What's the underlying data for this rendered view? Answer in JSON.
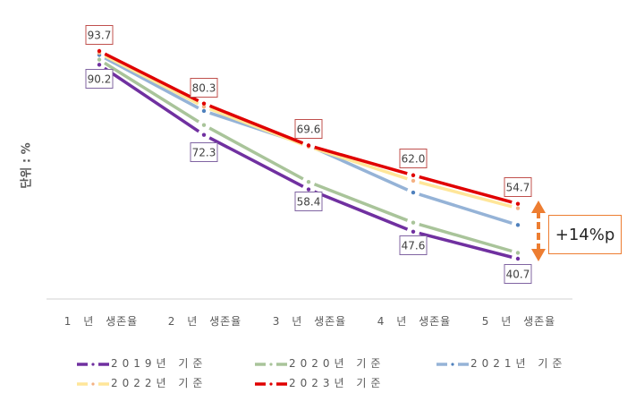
{
  "chart_data": {
    "type": "line",
    "title": "",
    "xlabel": "",
    "ylabel": "단위 : %",
    "categories": [
      "1년 생존율",
      "2년 생존율",
      "3년 생존율",
      "4년 생존율",
      "5년 생존율"
    ],
    "series": [
      {
        "name": "2019년 기준",
        "color": "#7030A0",
        "values": [
          90.2,
          72.3,
          58.4,
          47.6,
          40.7
        ],
        "labels_shown": true
      },
      {
        "name": "2020년 기준",
        "color": "#A9C49A",
        "values": [
          91.5,
          74.8,
          60.3,
          49.9,
          42.2
        ],
        "labels_shown": false
      },
      {
        "name": "2021년 기준",
        "color": "#95B3D7",
        "values": [
          92.7,
          78.4,
          69.6,
          57.6,
          49.3
        ],
        "labels_shown": false
      },
      {
        "name": "2022년 기준",
        "color": "#FFE699",
        "values": [
          93.2,
          79.5,
          69.3,
          60.6,
          53.6
        ],
        "labels_shown": false
      },
      {
        "name": "2023년 기준",
        "color": "#E00000",
        "values": [
          93.7,
          80.3,
          69.6,
          62.0,
          54.7
        ],
        "labels_shown": true
      }
    ],
    "grid": false,
    "legend_position": "bottom",
    "annotations": [
      {
        "text": "+14%p",
        "type": "callout-box",
        "target": "5년 생존율 gap between 2023 and 2019"
      }
    ]
  },
  "y_axis_label": "단위 : %",
  "x_ticks": [
    "1 년   생존율",
    "2 년   생존율",
    "3 년   생존율",
    "4 년   생존율",
    "5 년   생존율"
  ],
  "data_labels": {
    "top": [
      "93.7",
      "80.3",
      "69.6",
      "62.0",
      "54.7"
    ],
    "bottom": [
      "90.2",
      "72.3",
      "58.4",
      "47.6",
      "40.7"
    ]
  },
  "legend": [
    {
      "label": "2019년  기준",
      "color": "#7030A0"
    },
    {
      "label": "2020년  기준",
      "color": "#A9C49A"
    },
    {
      "label": "2021년  기준",
      "color": "#95B3D7"
    },
    {
      "label": "2022년  기준",
      "color": "#FFE699"
    },
    {
      "label": "2023년  기준",
      "color": "#E00000"
    }
  ],
  "callout": {
    "text": "+14%p",
    "color": "#ED7D31"
  }
}
